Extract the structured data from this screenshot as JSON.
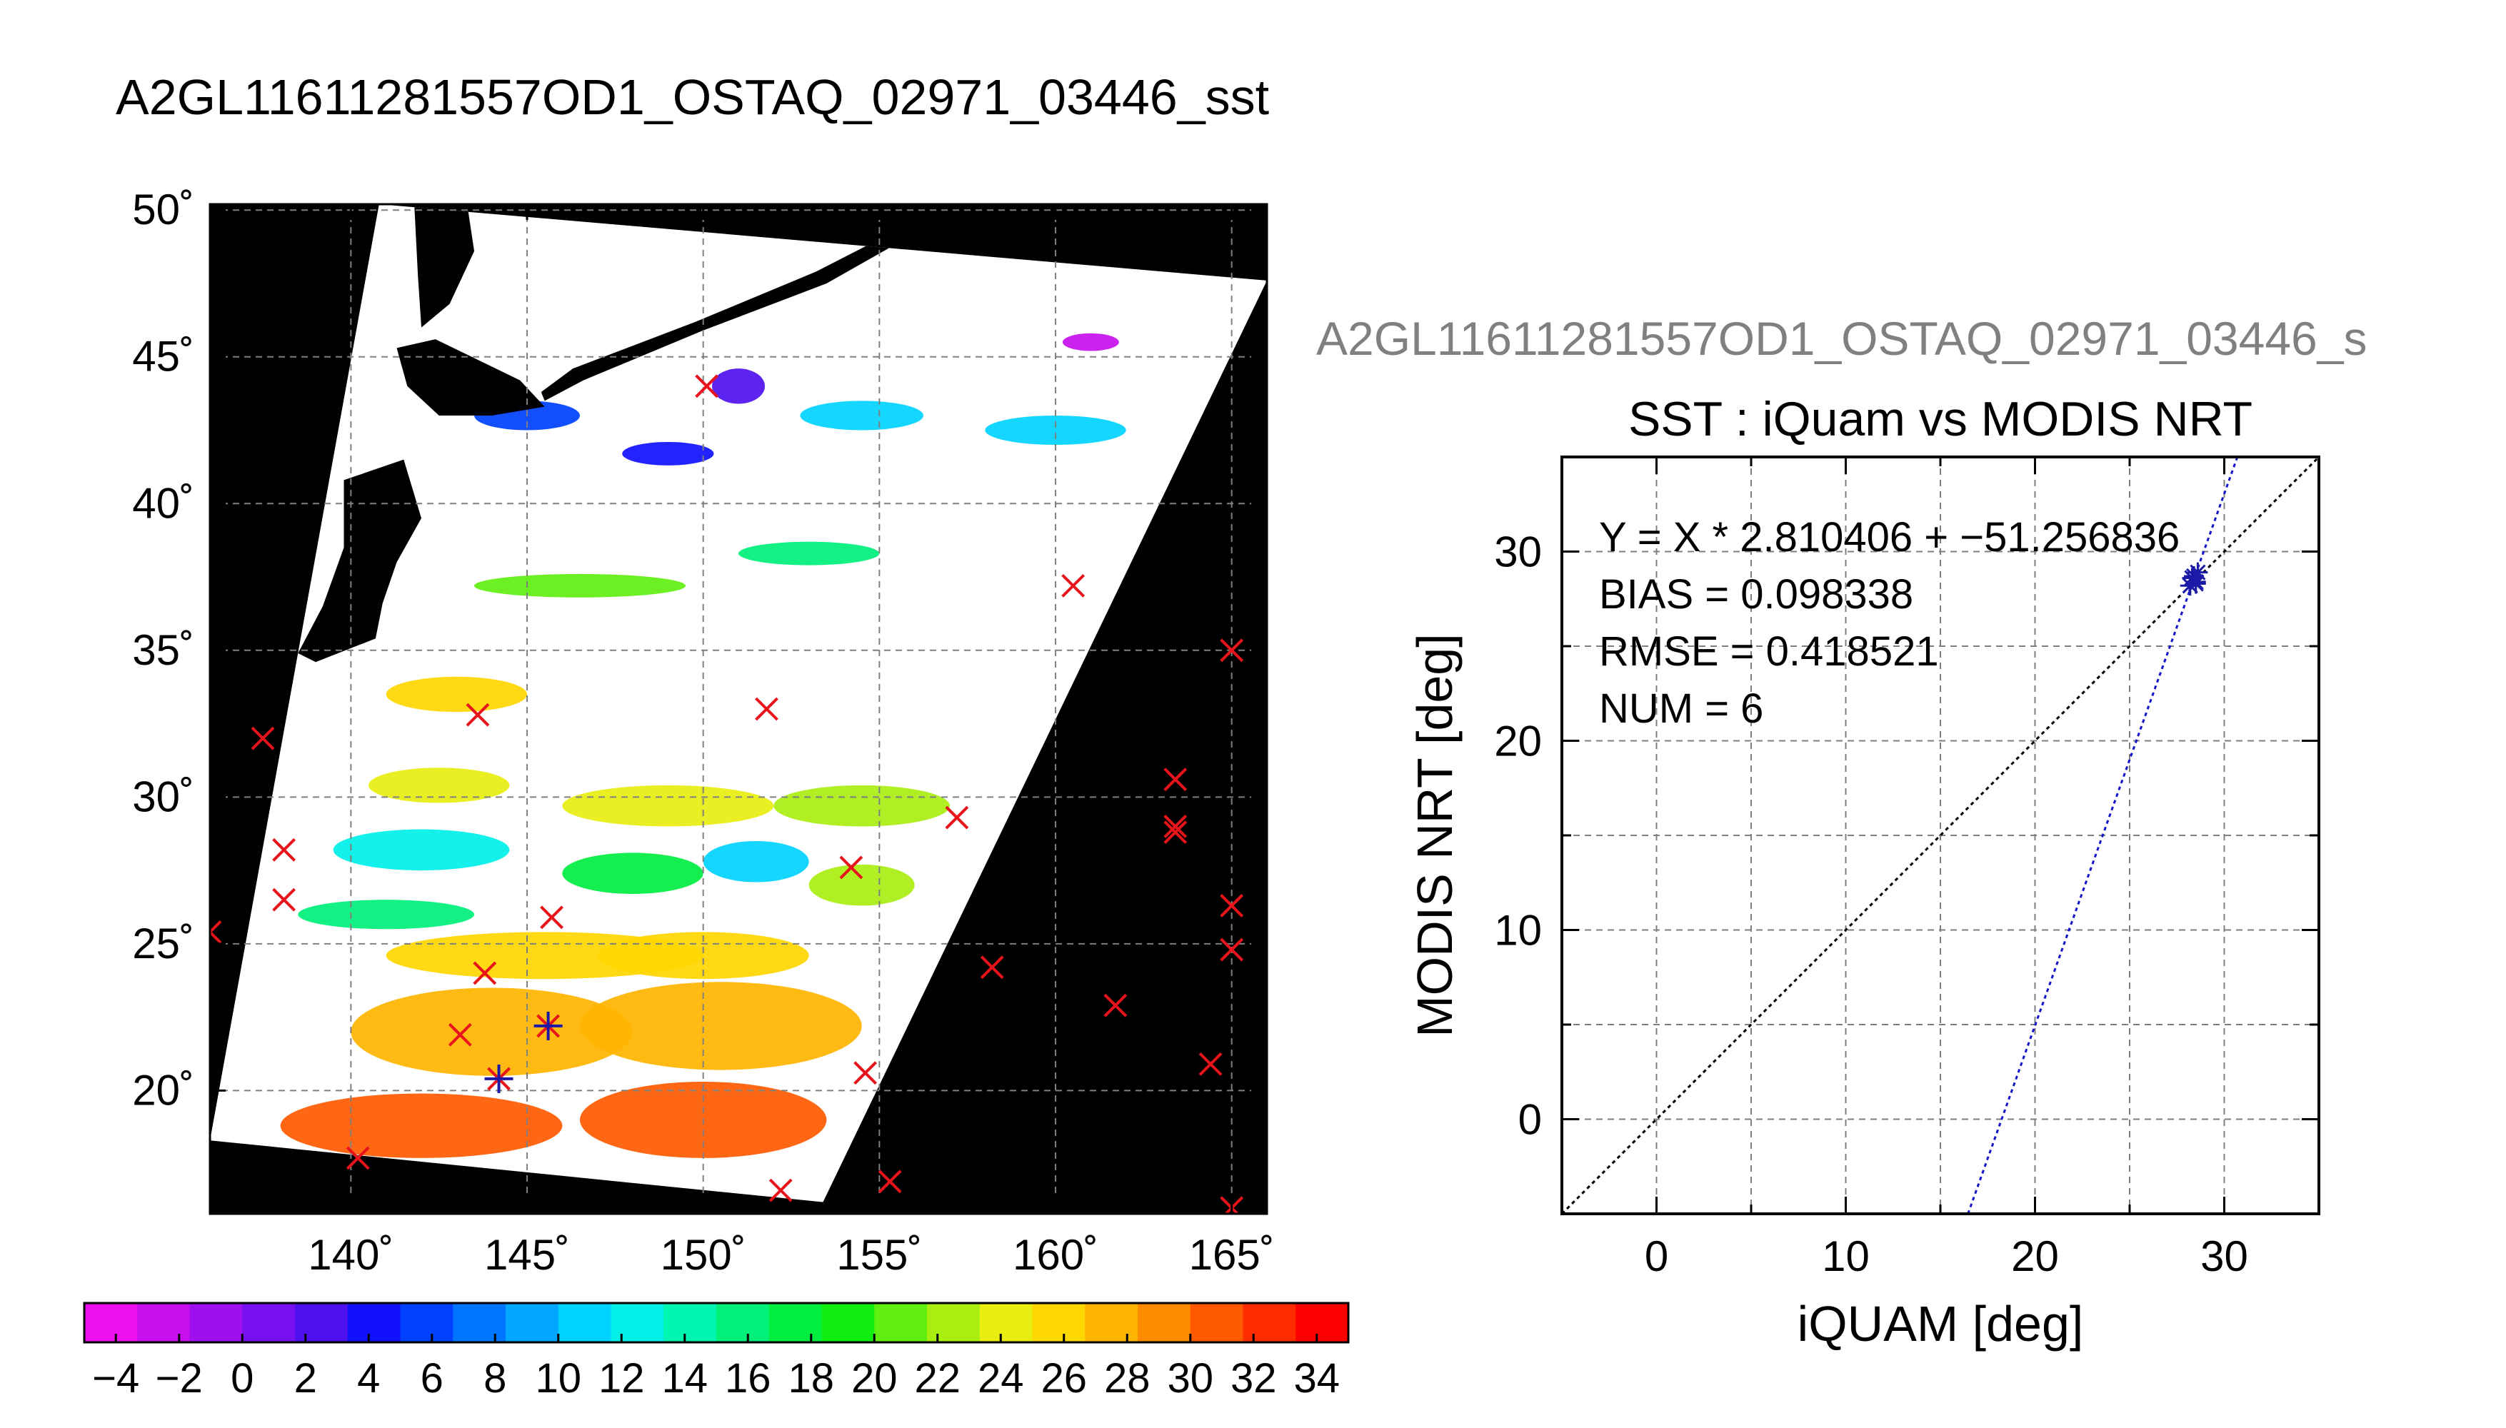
{
  "page": {
    "main_title": "A2GL11611281557OD1_OSTAQ_02971_03446_sst",
    "right_title": "A2GL11611281557OD1_OSTAQ_02971_03446_s"
  },
  "colors": {
    "background": "#ffffff",
    "land_and_no_swath": "#000000",
    "grid": "#7f7f7f",
    "match_x_marker": "#e8141b",
    "match_star_marker": "#1a1aa6",
    "one_to_one_line": "#000000",
    "fit_line": "#1414c8",
    "axis_text": "#000000",
    "right_title_text": "#808080"
  },
  "chart_data": [
    {
      "type": "heatmap",
      "description_role": "SST swath map",
      "xaxis": {
        "range": [
          136,
          166
        ],
        "ticks": [
          140,
          145,
          150,
          155,
          160,
          165
        ],
        "tick_labels": [
          "140˚",
          "145˚",
          "150˚",
          "155˚",
          "160˚",
          "165˚"
        ]
      },
      "yaxis": {
        "range": [
          15.8,
          50.2
        ],
        "ticks": [
          20,
          25,
          30,
          35,
          40,
          45,
          50
        ],
        "tick_labels": [
          "20˚",
          "25˚",
          "30˚",
          "35˚",
          "40˚",
          "45˚",
          "50˚"
        ]
      },
      "grid": true,
      "swath_corners_lonlat": [
        [
          140.8,
          50.2
        ],
        [
          166.0,
          47.6
        ],
        [
          153.4,
          16.2
        ],
        [
          136.0,
          18.3
        ]
      ],
      "land": [
        {
          "name": "Hokkaido",
          "polygon": [
            [
              141.3,
              45.3
            ],
            [
              141.6,
              44.0
            ],
            [
              142.5,
              43.0
            ],
            [
              144.0,
              43.0
            ],
            [
              145.5,
              43.3
            ],
            [
              144.8,
              44.2
            ],
            [
              142.4,
              45.6
            ]
          ]
        },
        {
          "name": "Honshu",
          "polygon": [
            [
              139.8,
              40.8
            ],
            [
              141.5,
              41.5
            ],
            [
              142.0,
              39.5
            ],
            [
              141.3,
              38.0
            ],
            [
              140.9,
              36.6
            ],
            [
              140.7,
              35.4
            ],
            [
              139.0,
              34.6
            ],
            [
              138.5,
              34.9
            ],
            [
              139.2,
              36.5
            ],
            [
              139.8,
              38.5
            ]
          ]
        },
        {
          "name": "Sakhalin",
          "polygon": [
            [
              141.8,
              50.2
            ],
            [
              143.3,
              50.2
            ],
            [
              143.5,
              48.6
            ],
            [
              142.8,
              46.8
            ],
            [
              142.0,
              46.0
            ],
            [
              141.9,
              47.8
            ]
          ]
        },
        {
          "name": "Kuril Islands",
          "polygon": [
            [
              145.5,
              43.5
            ],
            [
              146.6,
              44.2
            ],
            [
              150.0,
              45.9
            ],
            [
              153.5,
              47.5
            ],
            [
              156.0,
              49.2
            ],
            [
              155.8,
              49.5
            ],
            [
              153.2,
              47.9
            ],
            [
              149.8,
              46.2
            ],
            [
              146.3,
              44.6
            ],
            [
              145.4,
              43.8
            ]
          ]
        }
      ],
      "sst_patches": [
        {
          "lon": 145.0,
          "lat": 43.0,
          "w": 3.0,
          "h": 1.0,
          "value": 6
        },
        {
          "lon": 149.0,
          "lat": 41.7,
          "w": 2.6,
          "h": 0.8,
          "value": 4
        },
        {
          "lon": 151.0,
          "lat": 44.0,
          "w": 1.5,
          "h": 1.2,
          "value": 2
        },
        {
          "lon": 154.5,
          "lat": 43.0,
          "w": 3.5,
          "h": 1.0,
          "value": 10
        },
        {
          "lon": 160.0,
          "lat": 42.5,
          "w": 4.0,
          "h": 1.0,
          "value": 10
        },
        {
          "lon": 146.5,
          "lat": 37.2,
          "w": 6.0,
          "h": 0.8,
          "value": 20
        },
        {
          "lon": 153.0,
          "lat": 38.3,
          "w": 4.0,
          "h": 0.8,
          "value": 16
        },
        {
          "lon": 143.0,
          "lat": 33.5,
          "w": 4.0,
          "h": 1.2,
          "value": 26
        },
        {
          "lon": 142.5,
          "lat": 30.4,
          "w": 4.0,
          "h": 1.2,
          "value": 24
        },
        {
          "lon": 149.0,
          "lat": 29.7,
          "w": 6.0,
          "h": 1.4,
          "value": 24
        },
        {
          "lon": 154.5,
          "lat": 29.7,
          "w": 5.0,
          "h": 1.4,
          "value": 22
        },
        {
          "lon": 142.0,
          "lat": 28.2,
          "w": 5.0,
          "h": 1.4,
          "value": 12
        },
        {
          "lon": 148.0,
          "lat": 27.4,
          "w": 4.0,
          "h": 1.4,
          "value": 18
        },
        {
          "lon": 151.5,
          "lat": 27.8,
          "w": 3.0,
          "h": 1.4,
          "value": 10
        },
        {
          "lon": 154.5,
          "lat": 27.0,
          "w": 3.0,
          "h": 1.4,
          "value": 22
        },
        {
          "lon": 141.0,
          "lat": 26.0,
          "w": 5.0,
          "h": 1.0,
          "value": 16
        },
        {
          "lon": 145.5,
          "lat": 24.6,
          "w": 9.0,
          "h": 1.6,
          "value": 26
        },
        {
          "lon": 150.0,
          "lat": 24.6,
          "w": 6.0,
          "h": 1.6,
          "value": 26
        },
        {
          "lon": 144.0,
          "lat": 22.0,
          "w": 8.0,
          "h": 3.0,
          "value": 28
        },
        {
          "lon": 150.5,
          "lat": 22.2,
          "w": 8.0,
          "h": 3.0,
          "value": 28
        },
        {
          "lon": 142.0,
          "lat": 18.8,
          "w": 8.0,
          "h": 2.2,
          "value": 30
        },
        {
          "lon": 150.0,
          "lat": 19.0,
          "w": 7.0,
          "h": 2.6,
          "value": 30
        },
        {
          "lon": 161.0,
          "lat": 45.5,
          "w": 1.6,
          "h": 0.6,
          "value": -2
        }
      ],
      "match_x": [
        [
          150.1,
          44.0
        ],
        [
          160.5,
          37.2
        ],
        [
          165.0,
          35.0
        ],
        [
          137.5,
          32.0
        ],
        [
          143.6,
          32.8
        ],
        [
          151.8,
          33.0
        ],
        [
          163.4,
          30.6
        ],
        [
          163.4,
          29.0
        ],
        [
          163.4,
          28.8
        ],
        [
          157.2,
          29.3
        ],
        [
          154.2,
          27.6
        ],
        [
          138.1,
          28.2
        ],
        [
          138.1,
          26.5
        ],
        [
          145.7,
          25.9
        ],
        [
          136.0,
          25.4
        ],
        [
          165.0,
          26.3
        ],
        [
          165.0,
          24.8
        ],
        [
          143.8,
          24.0
        ],
        [
          158.2,
          24.2
        ],
        [
          161.7,
          22.9
        ],
        [
          143.1,
          21.9
        ],
        [
          164.4,
          20.9
        ],
        [
          154.6,
          20.6
        ],
        [
          140.2,
          17.7
        ],
        [
          155.3,
          16.9
        ],
        [
          152.2,
          16.6
        ],
        [
          165.0,
          16.0
        ]
      ],
      "match_star": [
        [
          145.6,
          22.2
        ],
        [
          144.2,
          20.4
        ]
      ]
    },
    {
      "type": "scatter",
      "title": "SST : iQuam vs MODIS NRT",
      "xlabel": "iQUAM [deg]",
      "ylabel": "MODIS NRT [deg]",
      "xlim": [
        -5,
        35
      ],
      "ylim": [
        -5,
        35
      ],
      "xticks": [
        0,
        10,
        20,
        30
      ],
      "yticks": [
        0,
        10,
        20,
        30
      ],
      "grid": true,
      "points": [
        [
          28.3,
          28.6
        ],
        [
          28.5,
          28.4
        ],
        [
          28.2,
          28.2
        ],
        [
          28.6,
          28.9
        ],
        [
          28.4,
          28.7
        ],
        [
          28.5,
          28.3
        ]
      ],
      "one_to_one": true,
      "fit": {
        "slope": 2.810406,
        "intercept": -51.256836
      },
      "annotations": [
        "Y = X * 2.810406 + −51.256836",
        "BIAS = 0.098338",
        "RMSE = 0.418521",
        "NUM = 6"
      ]
    }
  ],
  "colorbar": {
    "range": [
      -5,
      35
    ],
    "step": 2,
    "tick_labels": [
      "−4",
      "−2",
      "0",
      "2",
      "4",
      "6",
      "8",
      "10",
      "12",
      "14",
      "16",
      "18",
      "20",
      "22",
      "24",
      "26",
      "28",
      "30",
      "32",
      "34"
    ],
    "tick_values": [
      -4,
      -2,
      0,
      2,
      4,
      6,
      8,
      10,
      12,
      14,
      16,
      18,
      20,
      22,
      24,
      26,
      28,
      30,
      32,
      34
    ],
    "colors": [
      "#ee10ee",
      "#c80fee",
      "#9f10ee",
      "#7710ee",
      "#4f10ee",
      "#1010ff",
      "#0040ff",
      "#0075ff",
      "#00a6ff",
      "#00d2ff",
      "#00f0e8",
      "#00f5b0",
      "#00f07a",
      "#00ee40",
      "#10ee10",
      "#60ee10",
      "#a8ee10",
      "#e8ee10",
      "#ffd700",
      "#ffb400",
      "#ff8c00",
      "#ff5a00",
      "#ff2c00",
      "#ff0000"
    ]
  }
}
